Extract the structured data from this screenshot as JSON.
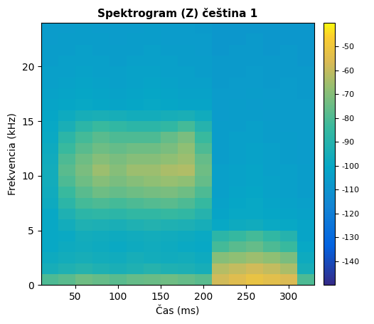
{
  "chart_data": {
    "type": "heatmap",
    "title": "Spektrogram (Z) čeština 1",
    "x_label": "Čas (ms)",
    "y_label": "Frekvencia (kHz)",
    "time_edges": [
      10,
      30,
      50,
      70,
      90,
      110,
      130,
      150,
      170,
      190,
      210,
      230,
      250,
      270,
      290,
      310,
      330
    ],
    "frequency_edges": [
      0,
      1,
      2,
      3,
      4,
      5,
      6,
      7,
      8,
      9,
      10,
      11,
      12,
      13,
      14,
      15,
      16,
      17,
      18,
      19,
      20,
      21,
      22,
      23,
      24
    ],
    "cells": [
      [
        -80,
        -78,
        -74,
        -76,
        -78,
        -76,
        -75,
        -74,
        -76,
        -78,
        -58,
        -55,
        -52,
        -54,
        -56,
        -80
      ],
      [
        -95,
        -92,
        -90,
        -92,
        -94,
        -92,
        -90,
        -92,
        -93,
        -95,
        -62,
        -60,
        -58,
        -60,
        -64,
        -95
      ],
      [
        -98,
        -96,
        -95,
        -96,
        -97,
        -95,
        -96,
        -97,
        -96,
        -98,
        -70,
        -68,
        -66,
        -68,
        -72,
        -98
      ],
      [
        -100,
        -98,
        -97,
        -98,
        -99,
        -98,
        -97,
        -98,
        -99,
        -100,
        -82,
        -78,
        -76,
        -80,
        -84,
        -100
      ],
      [
        -100,
        -99,
        -96,
        -97,
        -98,
        -97,
        -96,
        -97,
        -98,
        -99,
        -88,
        -85,
        -82,
        -86,
        -90,
        -102
      ],
      [
        -100,
        -96,
        -92,
        -93,
        -94,
        -92,
        -91,
        -92,
        -93,
        -95,
        -100,
        -98,
        -97,
        -99,
        -100,
        -102
      ],
      [
        -100,
        -92,
        -88,
        -87,
        -88,
        -86,
        -86,
        -85,
        -86,
        -90,
        -102,
        -100,
        -100,
        -101,
        -102,
        -103
      ],
      [
        -98,
        -88,
        -82,
        -80,
        -82,
        -80,
        -79,
        -78,
        -80,
        -85,
        -103,
        -101,
        -100,
        -102,
        -103,
        -104
      ],
      [
        -97,
        -84,
        -78,
        -74,
        -76,
        -74,
        -73,
        -72,
        -74,
        -80,
        -104,
        -102,
        -101,
        -103,
        -104,
        -105
      ],
      [
        -96,
        -80,
        -74,
        -70,
        -72,
        -70,
        -68,
        -67,
        -68,
        -76,
        -104,
        -103,
        -102,
        -103,
        -104,
        -105
      ],
      [
        -96,
        -78,
        -72,
        -66,
        -70,
        -66,
        -66,
        -64,
        -63,
        -74,
        -104,
        -103,
        -102,
        -104,
        -104,
        -105
      ],
      [
        -97,
        -80,
        -74,
        -70,
        -72,
        -70,
        -70,
        -68,
        -66,
        -76,
        -105,
        -104,
        -103,
        -104,
        -105,
        -106
      ],
      [
        -98,
        -84,
        -78,
        -74,
        -76,
        -74,
        -74,
        -72,
        -68,
        -80,
        -105,
        -104,
        -103,
        -104,
        -105,
        -106
      ],
      [
        -99,
        -88,
        -82,
        -78,
        -80,
        -80,
        -80,
        -76,
        -72,
        -84,
        -105,
        -104,
        -104,
        -105,
        -105,
        -106
      ],
      [
        -100,
        -94,
        -88,
        -84,
        -86,
        -88,
        -88,
        -86,
        -82,
        -90,
        -105,
        -105,
        -104,
        -105,
        -106,
        -106
      ],
      [
        -101,
        -98,
        -95,
        -94,
        -95,
        -96,
        -96,
        -95,
        -94,
        -97,
        -106,
        -105,
        -105,
        -106,
        -106,
        -106
      ],
      [
        -102,
        -101,
        -100,
        -101,
        -102,
        -101,
        -100,
        -101,
        -102,
        -102,
        -106,
        -105,
        -106,
        -105,
        -106,
        -106
      ],
      [
        -103,
        -102,
        -101,
        -102,
        -103,
        -102,
        -101,
        -102,
        -103,
        -103,
        -106,
        -106,
        -105,
        -106,
        -106,
        -107
      ],
      [
        -104,
        -103,
        -102,
        -103,
        -104,
        -103,
        -102,
        -103,
        -104,
        -104,
        -107,
        -106,
        -106,
        -107,
        -106,
        -107
      ],
      [
        -104,
        -104,
        -103,
        -104,
        -104,
        -103,
        -103,
        -104,
        -104,
        -105,
        -107,
        -107,
        -106,
        -107,
        -107,
        -107
      ],
      [
        -105,
        -104,
        -104,
        -104,
        -105,
        -104,
        -104,
        -104,
        -105,
        -105,
        -107,
        -107,
        -107,
        -107,
        -107,
        -108
      ],
      [
        -105,
        -105,
        -104,
        -105,
        -105,
        -105,
        -104,
        -105,
        -105,
        -106,
        -108,
        -107,
        -107,
        -108,
        -107,
        -108
      ],
      [
        -106,
        -105,
        -105,
        -105,
        -106,
        -105,
        -105,
        -106,
        -106,
        -106,
        -108,
        -108,
        -107,
        -108,
        -108,
        -108
      ],
      [
        -106,
        -106,
        -105,
        -106,
        -106,
        -106,
        -105,
        -106,
        -106,
        -107,
        -108,
        -108,
        -108,
        -108,
        -108,
        -108
      ]
    ],
    "xlim": [
      10,
      330
    ],
    "xticks": [
      50,
      100,
      150,
      200,
      250,
      300
    ],
    "ylim": [
      0,
      24
    ],
    "yticks": [
      0,
      5,
      10,
      15,
      20
    ],
    "colorbar_range": [
      -150,
      -40
    ],
    "colorbar_ticks": [
      -140,
      -130,
      -120,
      -110,
      -100,
      -90,
      -80,
      -70,
      -60,
      -50
    ]
  }
}
